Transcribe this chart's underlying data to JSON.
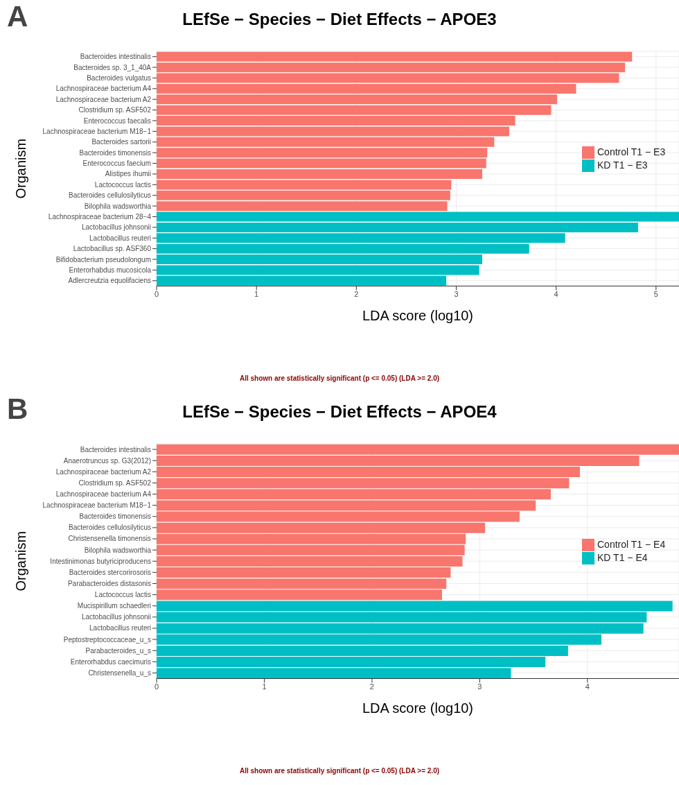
{
  "chart_data": [
    {
      "type": "bar",
      "orientation": "horizontal",
      "stacked": true,
      "title": "LEfSe − Species − Diet Effects − APOE3",
      "xlabel": "LDA score (log10)",
      "ylabel": "Organism",
      "categories": [
        "Bacteroides intestinalis",
        "Bacteroides sp. 3_1_40A",
        "Bacteroides vulgatus",
        "Lachnospiraceae bacterium A4",
        "Lachnospiraceae bacterium A2",
        "Clostridium sp. ASF502",
        "Enterococcus faecalis",
        "Lachnospiraceae bacterium M18−1",
        "Bacteroides sartorii",
        "Bacteroides timonensis",
        "Enterococcus faecium",
        "Alistipes ihumii",
        "Lactococcus lactis",
        "Bacteroides cellulosilyticus",
        "Bilophila wadsworthia",
        "Lachnospiraceae bacterium 28−4",
        "Lactobacillus johnsonii",
        "Lactobacillus reuteri",
        "Lactobacillus sp. ASF360",
        "Bifidobacterium pseudolongum",
        "Enterorhabdus mucosicola",
        "Adlercreutzia equolifaciens"
      ],
      "series": [
        {
          "name": "Control T1 − E3",
          "color": "#f8766d",
          "values": [
            4.76,
            4.69,
            4.63,
            4.2,
            4.01,
            3.95,
            3.59,
            3.53,
            3.38,
            3.31,
            3.3,
            3.26,
            2.95,
            2.94,
            2.91,
            null,
            null,
            null,
            null,
            null,
            null,
            null
          ]
        },
        {
          "name": "KD T1 − E3",
          "color": "#00bfc4",
          "values": [
            null,
            null,
            null,
            null,
            null,
            null,
            null,
            null,
            null,
            null,
            null,
            null,
            null,
            null,
            null,
            5.23,
            4.82,
            4.09,
            3.73,
            3.26,
            3.23,
            2.9
          ]
        }
      ],
      "xlim": [
        0,
        5.23
      ],
      "xticks": [
        0,
        1,
        2,
        3,
        4,
        5
      ],
      "grid": true,
      "legend": "right",
      "annotations": [
        "A",
        "All shown are statistically significant (p <= 0.05) (LDA >= 2.0)"
      ]
    },
    {
      "type": "bar",
      "orientation": "horizontal",
      "stacked": true,
      "title": "LEfSe − Species − Diet Effects − APOE4",
      "xlabel": "LDA score (log10)",
      "ylabel": "Organism",
      "categories": [
        "Bacteroides intestinalis",
        "Anaerotruncus sp. G3(2012)",
        "Lachnospiraceae bacterium A2",
        "Clostridium sp. ASF502",
        "Lachnospiraceae bacterium A4",
        "Lachnospiraceae bacterium M18−1",
        "Bacteroides timonensis",
        "Bacteroides cellulosilyticus",
        "Christensenella timonensis",
        "Bilophila wadsworthia",
        "Intestinimonas butyriciproducens",
        "Bacteroides stercorirosoris",
        "Parabacteroides distasonis",
        "Lactococcus lactis",
        "Mucispirillum schaedleri",
        "Lactobacillus johnsonii",
        "Lactobacillus reuteri",
        "Peptostreptococcaceae_u_s",
        "Parabacteroides_u_s",
        "Enterorhabdus caecimuris",
        "Christensenella_u_s"
      ],
      "series": [
        {
          "name": "Control T1 − E4",
          "color": "#f8766d",
          "values": [
            4.85,
            4.48,
            3.93,
            3.83,
            3.66,
            3.52,
            3.37,
            3.05,
            2.87,
            2.86,
            2.84,
            2.73,
            2.69,
            2.65,
            null,
            null,
            null,
            null,
            null,
            null,
            null
          ]
        },
        {
          "name": "KD T1 − E4",
          "color": "#00bfc4",
          "values": [
            null,
            null,
            null,
            null,
            null,
            null,
            null,
            null,
            null,
            null,
            null,
            null,
            null,
            null,
            4.79,
            4.55,
            4.52,
            4.13,
            3.82,
            3.61,
            3.29
          ]
        }
      ],
      "xlim": [
        0,
        4.85
      ],
      "xticks": [
        0,
        1,
        2,
        3,
        4
      ],
      "grid": true,
      "legend": "right",
      "annotations": [
        "B",
        "All shown are statistically significant (p <= 0.05) (LDA >= 2.0)"
      ]
    }
  ]
}
